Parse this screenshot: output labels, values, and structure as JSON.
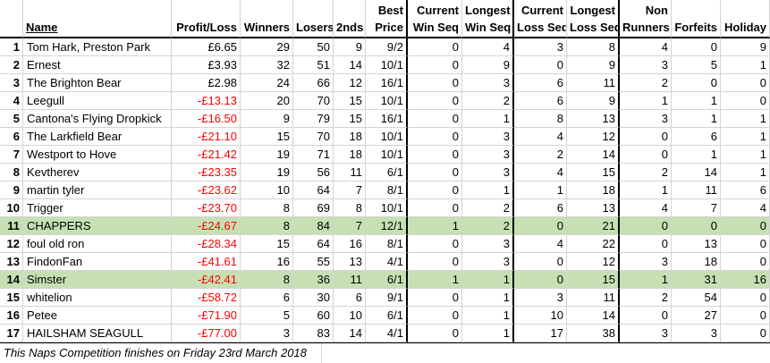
{
  "columns": {
    "rank": "",
    "name": "Name",
    "profit": "Profit/Loss",
    "winners": "Winners",
    "losers": "Losers",
    "seconds": "2nds",
    "best_price_1": "Best",
    "best_price_2": "Price",
    "cur_win_1": "Current",
    "cur_win_2": "Win Seq",
    "long_win_1": "Longest",
    "long_win_2": "Win Seq",
    "cur_loss_1": "Current",
    "cur_loss_2": "Loss Seq",
    "long_loss_1": "Longest",
    "long_loss_2": "Loss Seq",
    "non_runners_1": "Non",
    "non_runners_2": "Runners",
    "forfeits": "Forfeits",
    "holiday": "Holiday"
  },
  "rows": [
    {
      "rank": "1",
      "name": "Tom Hark, Preston Park",
      "profit": "£6.65",
      "winners": "29",
      "losers": "50",
      "seconds": "9",
      "best_price": "9/2",
      "cur_win": "0",
      "long_win": "4",
      "cur_loss": "3",
      "long_loss": "8",
      "non_runners": "4",
      "forfeits": "0",
      "holiday": "9"
    },
    {
      "rank": "2",
      "name": "Ernest",
      "profit": "£3.93",
      "winners": "32",
      "losers": "51",
      "seconds": "14",
      "best_price": "10/1",
      "cur_win": "0",
      "long_win": "9",
      "cur_loss": "0",
      "long_loss": "9",
      "non_runners": "3",
      "forfeits": "5",
      "holiday": "1"
    },
    {
      "rank": "3",
      "name": "The Brighton Bear",
      "profit": "£2.98",
      "winners": "24",
      "losers": "66",
      "seconds": "12",
      "best_price": "16/1",
      "cur_win": "0",
      "long_win": "3",
      "cur_loss": "6",
      "long_loss": "11",
      "non_runners": "2",
      "forfeits": "0",
      "holiday": "0"
    },
    {
      "rank": "4",
      "name": "Leegull",
      "profit": "-£13.13",
      "winners": "20",
      "losers": "70",
      "seconds": "15",
      "best_price": "10/1",
      "cur_win": "0",
      "long_win": "2",
      "cur_loss": "6",
      "long_loss": "9",
      "non_runners": "1",
      "forfeits": "1",
      "holiday": "0"
    },
    {
      "rank": "5",
      "name": "Cantona's Flying Dropkick",
      "profit": "-£16.50",
      "winners": "9",
      "losers": "79",
      "seconds": "15",
      "best_price": "16/1",
      "cur_win": "0",
      "long_win": "1",
      "cur_loss": "8",
      "long_loss": "13",
      "non_runners": "3",
      "forfeits": "1",
      "holiday": "1"
    },
    {
      "rank": "6",
      "name": "The Larkfield Bear",
      "profit": "-£21.10",
      "winners": "15",
      "losers": "70",
      "seconds": "18",
      "best_price": "10/1",
      "cur_win": "0",
      "long_win": "3",
      "cur_loss": "4",
      "long_loss": "12",
      "non_runners": "0",
      "forfeits": "6",
      "holiday": "1"
    },
    {
      "rank": "7",
      "name": "Westport to Hove",
      "profit": "-£21.42",
      "winners": "19",
      "losers": "71",
      "seconds": "18",
      "best_price": "10/1",
      "cur_win": "0",
      "long_win": "3",
      "cur_loss": "2",
      "long_loss": "14",
      "non_runners": "0",
      "forfeits": "1",
      "holiday": "1"
    },
    {
      "rank": "8",
      "name": "Kevtherev",
      "profit": "-£23.35",
      "winners": "19",
      "losers": "56",
      "seconds": "11",
      "best_price": "6/1",
      "cur_win": "0",
      "long_win": "3",
      "cur_loss": "4",
      "long_loss": "15",
      "non_runners": "2",
      "forfeits": "14",
      "holiday": "1"
    },
    {
      "rank": "9",
      "name": "martin tyler",
      "profit": "-£23.62",
      "winners": "10",
      "losers": "64",
      "seconds": "7",
      "best_price": "8/1",
      "cur_win": "0",
      "long_win": "1",
      "cur_loss": "1",
      "long_loss": "18",
      "non_runners": "1",
      "forfeits": "11",
      "holiday": "6"
    },
    {
      "rank": "10",
      "name": "Trigger",
      "profit": "-£23.70",
      "winners": "8",
      "losers": "69",
      "seconds": "8",
      "best_price": "10/1",
      "cur_win": "0",
      "long_win": "2",
      "cur_loss": "6",
      "long_loss": "13",
      "non_runners": "4",
      "forfeits": "7",
      "holiday": "4"
    },
    {
      "rank": "11",
      "name": "CHAPPERS",
      "profit": "-£24.67",
      "winners": "8",
      "losers": "84",
      "seconds": "7",
      "best_price": "12/1",
      "cur_win": "1",
      "long_win": "2",
      "cur_loss": "0",
      "long_loss": "21",
      "non_runners": "0",
      "forfeits": "0",
      "holiday": "0"
    },
    {
      "rank": "12",
      "name": "foul old ron",
      "profit": "-£28.34",
      "winners": "15",
      "losers": "64",
      "seconds": "16",
      "best_price": "8/1",
      "cur_win": "0",
      "long_win": "3",
      "cur_loss": "4",
      "long_loss": "22",
      "non_runners": "0",
      "forfeits": "13",
      "holiday": "0"
    },
    {
      "rank": "13",
      "name": "FindonFan",
      "profit": "-£41.61",
      "winners": "16",
      "losers": "55",
      "seconds": "13",
      "best_price": "4/1",
      "cur_win": "0",
      "long_win": "3",
      "cur_loss": "0",
      "long_loss": "12",
      "non_runners": "3",
      "forfeits": "18",
      "holiday": "0"
    },
    {
      "rank": "14",
      "name": "Simster",
      "profit": "-£42.41",
      "winners": "8",
      "losers": "36",
      "seconds": "11",
      "best_price": "6/1",
      "cur_win": "1",
      "long_win": "1",
      "cur_loss": "0",
      "long_loss": "15",
      "non_runners": "1",
      "forfeits": "31",
      "holiday": "16"
    },
    {
      "rank": "15",
      "name": "whitelion",
      "profit": "-£58.72",
      "winners": "6",
      "losers": "30",
      "seconds": "6",
      "best_price": "9/1",
      "cur_win": "0",
      "long_win": "1",
      "cur_loss": "3",
      "long_loss": "11",
      "non_runners": "2",
      "forfeits": "54",
      "holiday": "0"
    },
    {
      "rank": "16",
      "name": "Petee",
      "profit": "-£71.90",
      "winners": "5",
      "losers": "60",
      "seconds": "10",
      "best_price": "6/1",
      "cur_win": "0",
      "long_win": "1",
      "cur_loss": "10",
      "long_loss": "14",
      "non_runners": "0",
      "forfeits": "27",
      "holiday": "0"
    },
    {
      "rank": "17",
      "name": "HAILSHAM SEAGULL",
      "profit": "-£77.00",
      "winners": "3",
      "losers": "83",
      "seconds": "14",
      "best_price": "4/1",
      "cur_win": "0",
      "long_win": "1",
      "cur_loss": "17",
      "long_loss": "38",
      "non_runners": "3",
      "forfeits": "3",
      "holiday": "0"
    }
  ],
  "highlight_rows": [
    "11",
    "14"
  ],
  "footer": {
    "note": "This Naps Competition finishes on Friday 23rd March 2018"
  },
  "colors": {
    "highlight": "#c6e0b4",
    "negative": "#ff0000",
    "grid": "#d4d4d4"
  }
}
